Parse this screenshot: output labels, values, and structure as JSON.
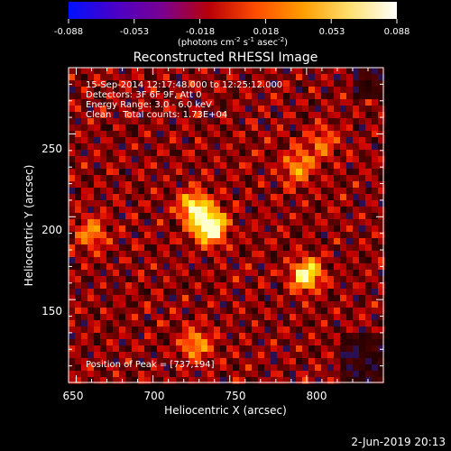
{
  "colorbar": {
    "ticks": [
      "-0.088",
      "-0.053",
      "-0.018",
      "0.018",
      "0.053",
      "0.088"
    ],
    "units_parts": [
      "(photons cm",
      "-2",
      " s",
      "-1",
      " asec",
      "-2",
      ")"
    ],
    "stops": [
      "#0011ff",
      "#4a00c8",
      "#7a0090",
      "#b80008",
      "#ff4d00",
      "#ff9d00",
      "#ffe070",
      "#ffffff"
    ]
  },
  "image": {
    "title": "Reconstructed RHESSI Image",
    "info_lines": [
      "15-Sep-2014 12:17:48.000 to 12:25:12.000",
      "Detectors: 3F 6F 9F, Att 0",
      "Energy Range: 3.0 - 6.0 keV",
      "Clean    Total counts: 1.73E+04"
    ],
    "peak_label": "Position of Peak = [737,194]",
    "x_axis": {
      "label": "Heliocentric X (arcsec)",
      "ticks": [
        "650",
        "700",
        "750",
        "800"
      ],
      "range": [
        645,
        850
      ]
    },
    "y_axis": {
      "label": "Heliocentric Y (arcsec)",
      "ticks": [
        "150",
        "200",
        "250"
      ],
      "range": [
        100,
        290
      ]
    },
    "peak": [
      737,
      194
    ],
    "sources": [
      {
        "x": 737,
        "y": 194,
        "strength": 1.0
      },
      {
        "x": 727,
        "y": 205,
        "strength": 0.7
      },
      {
        "x": 800,
        "y": 165,
        "strength": 0.72
      },
      {
        "x": 795,
        "y": 230,
        "strength": 0.45
      },
      {
        "x": 660,
        "y": 190,
        "strength": 0.4
      },
      {
        "x": 728,
        "y": 123,
        "strength": 0.45
      },
      {
        "x": 810,
        "y": 245,
        "strength": 0.3
      }
    ]
  },
  "footer": {
    "date": "2-Jun-2019 20:13"
  }
}
